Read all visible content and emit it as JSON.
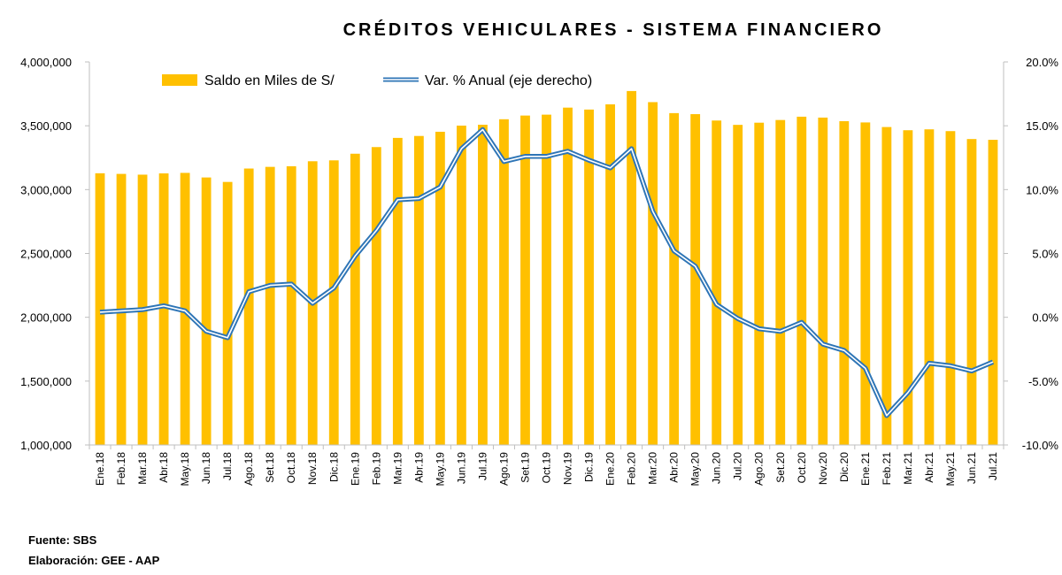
{
  "chart_data": {
    "type": "bar+line",
    "title": "CRÉDITOS VEHICULARES - SISTEMA FINANCIERO",
    "categories": [
      "Ene.18",
      "Feb.18",
      "Mar.18",
      "Abr.18",
      "May.18",
      "Jun.18",
      "Jul.18",
      "Ago.18",
      "Set.18",
      "Oct.18",
      "Nov.18",
      "Dic.18",
      "Ene.19",
      "Feb.19",
      "Mar.19",
      "Abr.19",
      "May.19",
      "Jun.19",
      "Jul.19",
      "Ago.19",
      "Set.19",
      "Oct.19",
      "Nov.19",
      "Dic.19",
      "Ene.20",
      "Feb.20",
      "Mar.20",
      "Abr.20",
      "May.20",
      "Jun.20",
      "Jul.20",
      "Ago.20",
      "Set.20",
      "Oct.20",
      "Nov.20",
      "Dic.20",
      "Ene.21",
      "Feb.21",
      "Mar.21",
      "Abr.21",
      "May.21",
      "Jun.21",
      "Jul.21"
    ],
    "series": [
      {
        "name": "Saldo en Miles de S/",
        "type": "bar",
        "axis": "left",
        "color": "#FFC000",
        "values": [
          3128000,
          3123000,
          3117000,
          3127000,
          3131000,
          3095000,
          3060000,
          3165000,
          3178000,
          3183000,
          3222000,
          3229000,
          3281000,
          3333000,
          3405000,
          3420000,
          3453000,
          3501000,
          3508000,
          3551000,
          3580000,
          3587000,
          3642000,
          3627000,
          3668000,
          3772000,
          3685000,
          3599000,
          3591000,
          3541000,
          3507000,
          3524000,
          3545000,
          3571000,
          3564000,
          3536000,
          3526000,
          3490000,
          3465000,
          3472000,
          3458000,
          3396000,
          3390000
        ]
      },
      {
        "name": "Var. % Anual (eje derecho)",
        "type": "line",
        "axis": "right",
        "color": "#2E75B6",
        "values": [
          0.4,
          0.5,
          0.6,
          0.9,
          0.5,
          -1.1,
          -1.6,
          2.0,
          2.5,
          2.6,
          1.1,
          2.3,
          4.8,
          6.8,
          9.2,
          9.3,
          10.2,
          13.2,
          14.7,
          12.2,
          12.6,
          12.6,
          13.0,
          12.3,
          11.7,
          13.2,
          8.3,
          5.2,
          4.0,
          1.0,
          -0.1,
          -0.9,
          -1.1,
          -0.4,
          -2.1,
          -2.6,
          -4.0,
          -7.7,
          -5.9,
          -3.6,
          -3.8,
          -4.2,
          -3.5
        ]
      }
    ],
    "left_axis": {
      "min": 1000000,
      "max": 4000000,
      "step": 500000,
      "tick_labels": [
        "1,000,000",
        "1,500,000",
        "2,000,000",
        "2,500,000",
        "3,000,000",
        "3,500,000",
        "4,000,000"
      ]
    },
    "right_axis": {
      "min": -10,
      "max": 20,
      "step": 5,
      "tick_labels": [
        "-10.0%",
        "-5.0%",
        "0.0%",
        "5.0%",
        "10.0%",
        "15.0%",
        "20.0%"
      ]
    },
    "legend": {
      "placement": "top-left",
      "items": [
        "Saldo en Miles de S/",
        "Var. % Anual (eje derecho)"
      ]
    },
    "grid": false
  },
  "footer": {
    "source": "Fuente: SBS",
    "elaboration": "Elaboración: GEE - AAP"
  }
}
